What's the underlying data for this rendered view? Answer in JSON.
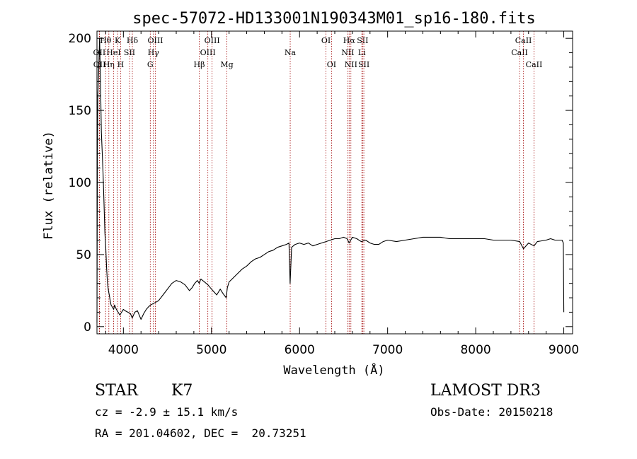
{
  "chart_data": {
    "type": "line",
    "title": "spec-57072-HD133001N190343M01_sp16-180.fits",
    "xlabel": "Wavelength (Å)",
    "ylabel": "Flux (relative)",
    "xlim": [
      3700,
      9100
    ],
    "ylim": [
      -5,
      205
    ],
    "x_ticks": [
      4000,
      5000,
      6000,
      7000,
      8000,
      9000
    ],
    "y_ticks": [
      0,
      50,
      100,
      150,
      200
    ],
    "grid": false,
    "line_color": "#000000",
    "marker_color": "#a00000",
    "series": [
      {
        "x": [
          3700,
          3705,
          3710,
          3720,
          3730,
          3740,
          3750,
          3760,
          3770,
          3780,
          3790,
          3800,
          3810,
          3820,
          3830,
          3840,
          3850,
          3860,
          3870,
          3880,
          3890,
          3900,
          3920,
          3940,
          3960,
          3980,
          4000,
          4020,
          4050,
          4080,
          4100,
          4130,
          4160,
          4200,
          4230,
          4260,
          4290,
          4310,
          4340,
          4370,
          4400,
          4450,
          4500,
          4550,
          4600,
          4650,
          4700,
          4750,
          4780,
          4810,
          4840,
          4861,
          4880,
          4920,
          4960,
          5000,
          5030,
          5060,
          5100,
          5130,
          5167,
          5180,
          5200,
          5250,
          5300,
          5350,
          5400,
          5450,
          5500,
          5550,
          5600,
          5650,
          5700,
          5750,
          5800,
          5850,
          5880,
          5893,
          5910,
          5950,
          6000,
          6050,
          6100,
          6150,
          6200,
          6250,
          6300,
          6350,
          6400,
          6450,
          6500,
          6540,
          6563,
          6600,
          6650,
          6700,
          6750,
          6800,
          6850,
          6900,
          6950,
          7000,
          7100,
          7200,
          7300,
          7400,
          7500,
          7600,
          7700,
          7800,
          7900,
          8000,
          8100,
          8200,
          8300,
          8400,
          8500,
          8542,
          8600,
          8662,
          8700,
          8800,
          8850,
          8900,
          8950,
          8980,
          8995,
          9000
        ],
        "y": [
          3,
          120,
          160,
          178,
          200,
          170,
          135,
          120,
          105,
          85,
          65,
          55,
          40,
          30,
          25,
          22,
          18,
          15,
          14,
          13,
          12,
          15,
          12,
          10,
          8,
          10,
          12,
          11,
          10,
          9,
          6,
          10,
          11,
          5,
          9,
          12,
          14,
          15,
          16,
          17,
          18,
          22,
          26,
          30,
          32,
          31,
          29,
          25,
          27,
          30,
          32,
          30,
          33,
          31,
          29,
          26,
          24,
          22,
          26,
          23,
          20,
          27,
          31,
          34,
          37,
          40,
          42,
          45,
          47,
          48,
          50,
          52,
          53,
          55,
          56,
          57,
          58,
          30,
          55,
          57,
          58,
          57,
          58,
          56,
          57,
          58,
          59,
          60,
          61,
          61,
          62,
          61,
          58,
          62,
          61,
          59,
          60,
          58,
          57,
          57,
          59,
          60,
          59,
          60,
          61,
          62,
          62,
          62,
          61,
          61,
          61,
          61,
          61,
          60,
          60,
          60,
          59,
          54,
          58,
          56,
          59,
          60,
          61,
          60,
          60,
          60,
          58,
          10
        ]
      }
    ],
    "line_markers": [
      {
        "name": "OII",
        "wavelength": 3727,
        "label_row": 2
      },
      {
        "name": "OII",
        "wavelength": 3729,
        "label_row": 3
      },
      {
        "name": "Hθ",
        "wavelength": 3798,
        "label_row": 1
      },
      {
        "name": "Hη",
        "wavelength": 3835,
        "label_row": 3
      },
      {
        "name": "HeI",
        "wavelength": 3889,
        "label_row": 2
      },
      {
        "name": "K",
        "wavelength": 3934,
        "label_row": 1
      },
      {
        "name": "H",
        "wavelength": 3969,
        "label_row": 3
      },
      {
        "name": "SII",
        "wavelength": 4070,
        "label_row": 2
      },
      {
        "name": "Hδ",
        "wavelength": 4102,
        "label_row": 1
      },
      {
        "name": "G",
        "wavelength": 4305,
        "label_row": 3
      },
      {
        "name": "Hγ",
        "wavelength": 4341,
        "label_row": 2
      },
      {
        "name": "OIII",
        "wavelength": 4363,
        "label_row": 1
      },
      {
        "name": "Hβ",
        "wavelength": 4861,
        "label_row": 3
      },
      {
        "name": "OIII",
        "wavelength": 4959,
        "label_row": 2
      },
      {
        "name": "OIII",
        "wavelength": 5007,
        "label_row": 1
      },
      {
        "name": "Mg",
        "wavelength": 5175,
        "label_row": 3
      },
      {
        "name": "Na",
        "wavelength": 5894,
        "label_row": 2
      },
      {
        "name": "OI",
        "wavelength": 6300,
        "label_row": 1
      },
      {
        "name": "OI",
        "wavelength": 6363,
        "label_row": 3
      },
      {
        "name": "NII",
        "wavelength": 6548,
        "label_row": 2
      },
      {
        "name": "Hα",
        "wavelength": 6563,
        "label_row": 1
      },
      {
        "name": "NII",
        "wavelength": 6583,
        "label_row": 3
      },
      {
        "name": "Li",
        "wavelength": 6707,
        "label_row": 2
      },
      {
        "name": "SII",
        "wavelength": 6716,
        "label_row": 1
      },
      {
        "name": "SII",
        "wavelength": 6730,
        "label_row": 3
      },
      {
        "name": "CaII",
        "wavelength": 8498,
        "label_row": 2
      },
      {
        "name": "CaII",
        "wavelength": 8542,
        "label_row": 1
      },
      {
        "name": "CaII",
        "wavelength": 8662,
        "label_row": 3
      }
    ]
  },
  "info": {
    "object_class": "STAR",
    "subclass": "K7",
    "survey": "LAMOST DR3",
    "cz": "cz = -2.9 ± 15.1 km/s",
    "obs_date": "Obs-Date: 20150218",
    "coords": "RA = 201.04602, DEC =  20.73251"
  }
}
